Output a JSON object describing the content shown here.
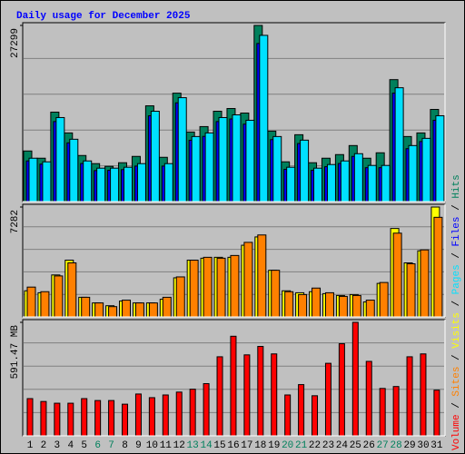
{
  "chart_data": [
    {
      "type": "bar",
      "title": "Daily usage for December 2025",
      "legend_separator": "/",
      "ylim": [
        0,
        27299
      ],
      "yticks": [
        27299
      ],
      "series": [
        {
          "name": "Hits",
          "color": "#00805c",
          "values": [
            7840,
            6720,
            13860,
            10640,
            7140,
            5880,
            5460,
            6020,
            7000,
            14840,
            6860,
            16800,
            10780,
            11620,
            14000,
            14420,
            13720,
            27299,
            10920,
            6160,
            10360,
            6020,
            6720,
            7280,
            8680,
            6720,
            7560,
            18900,
            10080,
            10640,
            14280
          ]
        },
        {
          "name": "Files",
          "color": "#0000ff",
          "values": [
            6300,
            5800,
            12400,
            9100,
            5900,
            4800,
            4850,
            4950,
            5500,
            13300,
            5500,
            15300,
            9500,
            10100,
            12400,
            12800,
            12000,
            24500,
            9600,
            5000,
            9000,
            4850,
            5400,
            5900,
            7000,
            5250,
            5250,
            16800,
            8200,
            9300,
            12600
          ]
        },
        {
          "name": "Pages",
          "color": "#00e0ff",
          "values": [
            6720,
            6160,
            13020,
            9660,
            6300,
            5180,
            5180,
            5320,
            5880,
            14000,
            5880,
            16100,
            10080,
            10640,
            13020,
            13440,
            12600,
            25760,
            10080,
            5320,
            9520,
            5180,
            5740,
            6300,
            7420,
            5600,
            5600,
            17640,
            8680,
            9800,
            13300
          ]
        }
      ]
    },
    {
      "type": "bar",
      "ylim": [
        0,
        7282
      ],
      "yticks": [
        7282
      ],
      "series": [
        {
          "name": "Visits",
          "color": "#ffff00",
          "values": [
            1730,
            1600,
            2780,
            3760,
            1300,
            925,
            740,
            1050,
            925,
            925,
            1170,
            2590,
            3760,
            3890,
            3950,
            3950,
            4750,
            5300,
            3090,
            1730,
            1600,
            1670,
            1540,
            1420,
            1480,
            990,
            2220,
            5860,
            3580,
            4380,
            7282
          ]
        },
        {
          "name": "Sites",
          "color": "#ff8000",
          "values": [
            1975,
            1670,
            2715,
            3580,
            1300,
            925,
            680,
            1110,
            925,
            925,
            1300,
            2650,
            3760,
            3950,
            3890,
            4070,
            4940,
            5430,
            3090,
            1670,
            1480,
            1910,
            1600,
            1360,
            1420,
            1110,
            2280,
            5550,
            3520,
            4440,
            6600
          ]
        }
      ]
    },
    {
      "type": "bar",
      "ylim": [
        0,
        591.47
      ],
      "yticks": [
        {
          "value": 591.47,
          "label": "591.47 MB"
        }
      ],
      "categories": [
        "1",
        "2",
        "3",
        "4",
        "5",
        "6",
        "7",
        "8",
        "9",
        "10",
        "11",
        "12",
        "13",
        "14",
        "15",
        "16",
        "17",
        "18",
        "19",
        "20",
        "21",
        "22",
        "23",
        "24",
        "25",
        "26",
        "27",
        "28",
        "29",
        "30",
        "31"
      ],
      "category_colors": [
        "#000",
        "#000",
        "#000",
        "#000",
        "#000",
        "#00805c",
        "#00805c",
        "#000",
        "#000",
        "#000",
        "#000",
        "#000",
        "#00805c",
        "#00805c",
        "#000",
        "#000",
        "#000",
        "#000",
        "#000",
        "#00805c",
        "#00805c",
        "#000",
        "#000",
        "#000",
        "#000",
        "#000",
        "#00805c",
        "#00805c",
        "#000",
        "#000",
        "#000"
      ],
      "series": [
        {
          "name": "Volume",
          "color": "#ff0000",
          "values": [
            194,
            179,
            170,
            170,
            194,
            184,
            184,
            165,
            218,
            199,
            213,
            228,
            243,
            272,
            412,
            519,
            422,
            466,
            427,
            213,
            267,
            209,
            378,
            480,
            591.47,
            388,
            247,
            257,
            412,
            427,
            238
          ]
        }
      ]
    }
  ]
}
